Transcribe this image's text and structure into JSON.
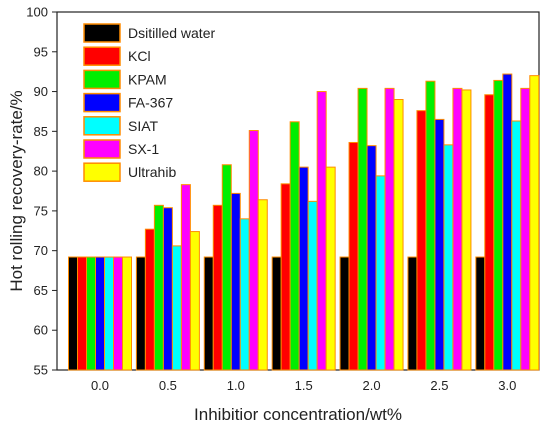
{
  "chart_data": {
    "type": "bar",
    "title": "",
    "xlabel": "Inhibitior concentration/wt%",
    "ylabel": "Hot rolling recovery-rate/%",
    "categories": [
      "0.0",
      "0.5",
      "1.0",
      "1.5",
      "2.0",
      "2.5",
      "3.0"
    ],
    "ylim": [
      55,
      100
    ],
    "yticks": [
      "55",
      "60",
      "65",
      "70",
      "75",
      "80",
      "85",
      "90",
      "95",
      "100"
    ],
    "legend_position": "top-left",
    "grid": false,
    "series": [
      {
        "name": "Dsitilled water",
        "color": "#000000",
        "values": [
          69.2,
          69.2,
          69.2,
          69.2,
          69.2,
          69.2,
          69.2
        ]
      },
      {
        "name": "KCl",
        "color": "#ff0000",
        "values": [
          69.2,
          72.7,
          75.7,
          78.4,
          83.6,
          87.6,
          89.6
        ]
      },
      {
        "name": "KPAM",
        "color": "#00ee00",
        "values": [
          69.2,
          75.7,
          80.8,
          86.2,
          90.4,
          91.3,
          91.4
        ]
      },
      {
        "name": "FA-367",
        "color": "#0000ff",
        "values": [
          69.2,
          75.4,
          77.2,
          80.5,
          83.2,
          86.5,
          92.2
        ]
      },
      {
        "name": "SIAT",
        "color": "#00ffff",
        "values": [
          69.2,
          70.6,
          74.0,
          76.2,
          79.4,
          83.3,
          86.3
        ]
      },
      {
        "name": "SX-1",
        "color": "#ff00ff",
        "values": [
          69.2,
          78.3,
          85.1,
          90.0,
          90.4,
          90.4,
          90.4
        ]
      },
      {
        "name": "Ultrahib",
        "color": "#ffff00",
        "values": [
          69.2,
          72.4,
          76.4,
          80.5,
          89.0,
          90.2,
          92.0
        ]
      }
    ]
  }
}
